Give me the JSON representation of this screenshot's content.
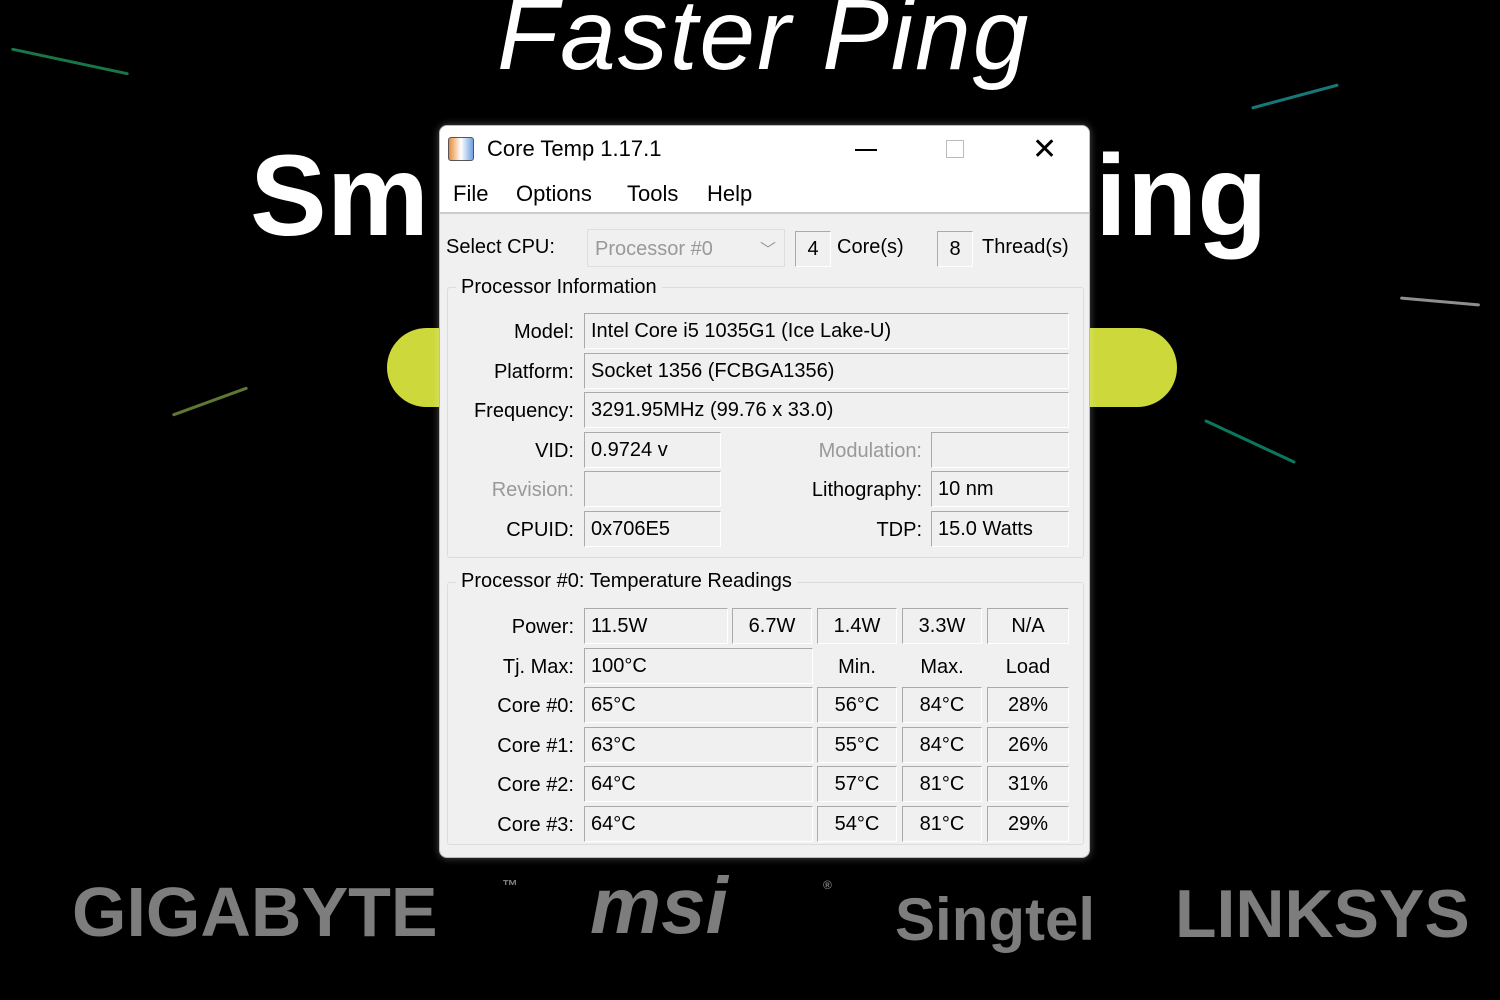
{
  "background": {
    "headline": "Faster Ping",
    "subheadline_left": "Sm",
    "subheadline_right": "ing",
    "accent": "#cdd93a",
    "partners": [
      "GIGABYTE",
      "msi",
      "Singtel",
      "LINKSYS"
    ],
    "partner_marks": {
      "gigabyte": "™",
      "msi": "®"
    }
  },
  "window": {
    "title": "Core Temp 1.17.1",
    "menu": [
      "File",
      "Options",
      "Tools",
      "Help"
    ]
  },
  "cpu_select": {
    "label": "Select CPU:",
    "value": "Processor #0",
    "cores": "4",
    "cores_label": "Core(s)",
    "threads": "8",
    "threads_label": "Thread(s)"
  },
  "info": {
    "title": "Processor Information",
    "model_label": "Model:",
    "model": "Intel Core i5 1035G1 (Ice Lake-U)",
    "platform_label": "Platform:",
    "platform": "Socket 1356 (FCBGA1356)",
    "frequency_label": "Frequency:",
    "frequency": "3291.95MHz (99.76 x 33.0)",
    "vid_label": "VID:",
    "vid": "0.9724 v",
    "modulation_label": "Modulation:",
    "modulation": "",
    "revision_label": "Revision:",
    "revision": "",
    "lithography_label": "Lithography:",
    "lithography": "10 nm",
    "cpuid_label": "CPUID:",
    "cpuid": "0x706E5",
    "tdp_label": "TDP:",
    "tdp": "15.0 Watts"
  },
  "temps": {
    "title": "Processor #0: Temperature Readings",
    "power_label": "Power:",
    "power": [
      "11.5W",
      "6.7W",
      "1.4W",
      "3.3W",
      "N/A"
    ],
    "tjmax_label": "Tj. Max:",
    "tjmax": "100°C",
    "headers": [
      "Min.",
      "Max.",
      "Load"
    ],
    "cores": [
      {
        "label": "Core #0:",
        "temp": "65°C",
        "min": "56°C",
        "max": "84°C",
        "load": "28%"
      },
      {
        "label": "Core #1:",
        "temp": "63°C",
        "min": "55°C",
        "max": "84°C",
        "load": "26%"
      },
      {
        "label": "Core #2:",
        "temp": "64°C",
        "min": "57°C",
        "max": "81°C",
        "load": "31%"
      },
      {
        "label": "Core #3:",
        "temp": "64°C",
        "min": "54°C",
        "max": "81°C",
        "load": "29%"
      }
    ]
  }
}
